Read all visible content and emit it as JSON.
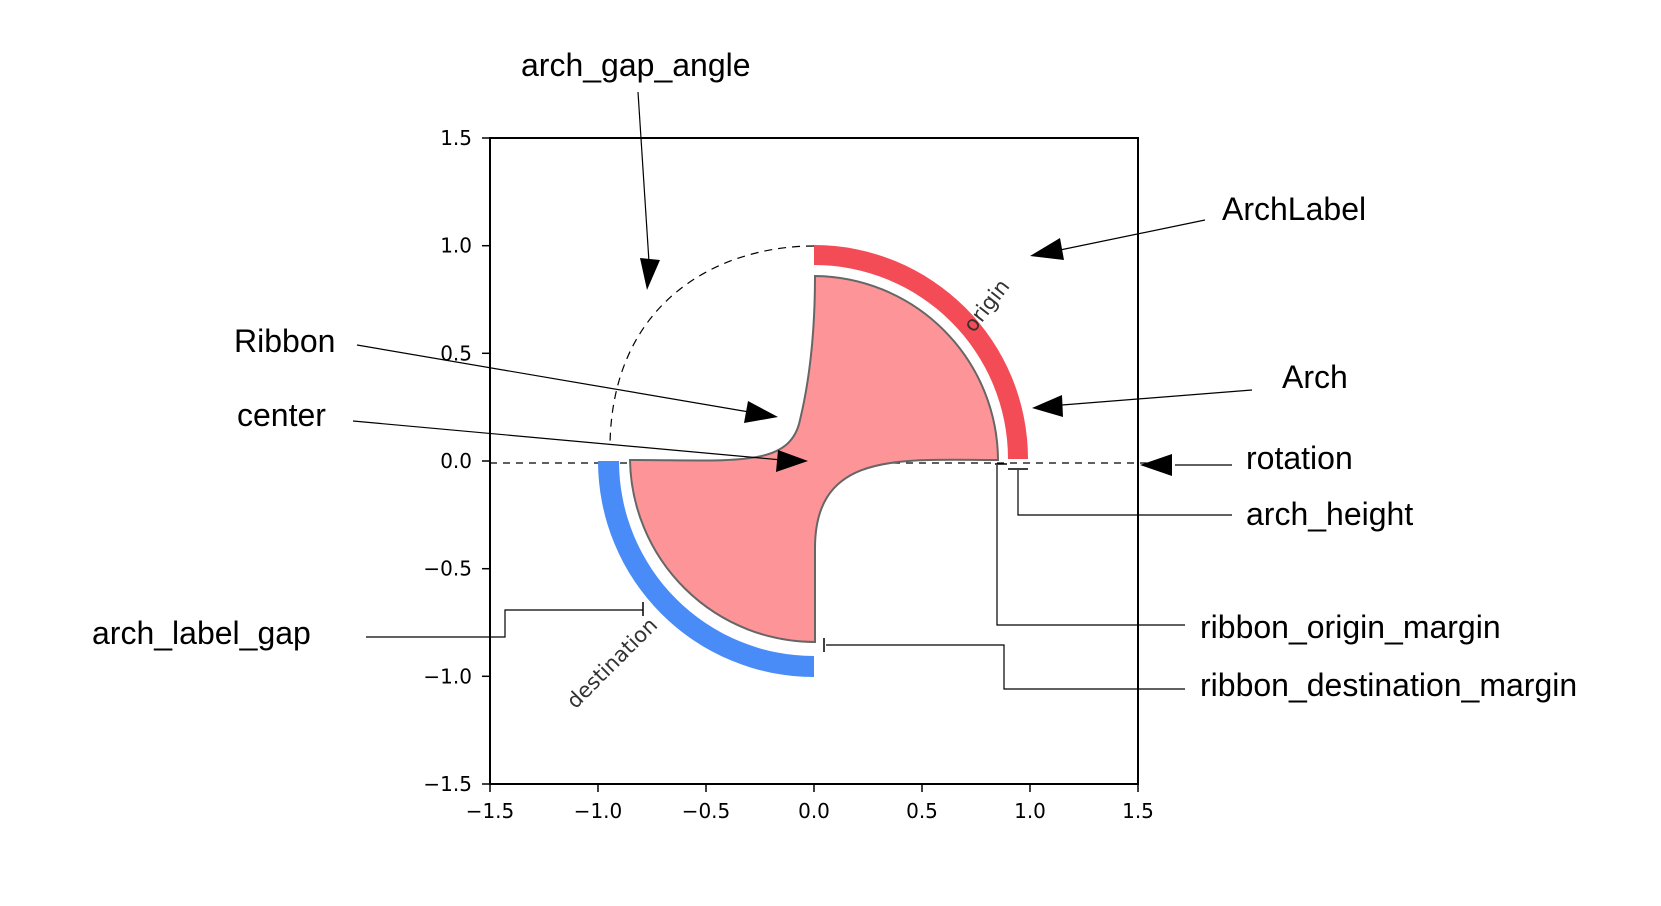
{
  "figure": {
    "x_ticks": [
      "−1.5",
      "−1.0",
      "−0.5",
      "0.0",
      "0.5",
      "1.0",
      "1.5"
    ],
    "y_ticks": [
      "1.5",
      "1.0",
      "0.5",
      "0.0",
      "−0.5",
      "−1.0",
      "−1.5"
    ],
    "x_range": [
      -1.5,
      1.5
    ],
    "y_range": [
      -1.5,
      1.5
    ],
    "arches": [
      {
        "label": "origin",
        "color": "#f44c56"
      },
      {
        "label": "destination",
        "color": "#4a8cf7"
      }
    ],
    "ribbon_color": "#fd9598",
    "ribbon_edge_color": "#666666"
  },
  "annotations": {
    "arch_gap_angle": "arch_gap_angle",
    "arch_label": "ArchLabel",
    "ribbon": "Ribbon",
    "arch": "Arch",
    "center": "center",
    "rotation": "rotation",
    "arch_height": "arch_height",
    "arch_label_gap": "arch_label_gap",
    "ribbon_origin_margin": "ribbon_origin_margin",
    "ribbon_destination_margin": "ribbon_destination_margin"
  }
}
